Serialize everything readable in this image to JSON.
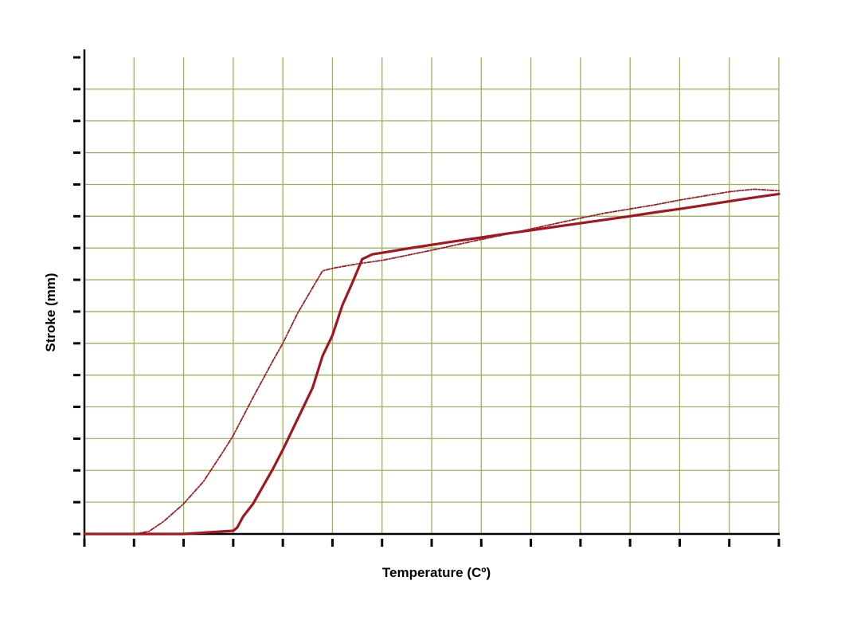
{
  "chart_data": {
    "type": "line",
    "title": "",
    "xlabel": "Temperature (Cº)",
    "ylabel": "Stroke (mm)",
    "xlim": [
      0,
      14
    ],
    "ylim": [
      0,
      15
    ],
    "x_tick_count": 15,
    "y_tick_count": 16,
    "grid": true,
    "colors": {
      "grid": "#9fb05a",
      "axis": "#000000",
      "series_solid": "#a4161f",
      "series_dashed": "#a01c22"
    },
    "series": [
      {
        "style": "solid",
        "x": [
          0,
          2,
          3,
          3.08,
          3.2,
          3.4,
          3.6,
          3.8,
          4.0,
          4.2,
          4.4,
          4.6,
          4.8,
          5.0,
          5.2,
          5.4,
          5.6,
          5.8,
          6.0,
          6.5,
          7.0,
          7.5,
          8.0,
          8.5,
          9.0,
          9.5,
          10.0,
          10.5,
          11.0,
          11.5,
          12.0,
          12.5,
          13.0,
          13.5,
          14.0
        ],
        "y": [
          0,
          0,
          0.1,
          0.2,
          0.55,
          0.95,
          1.5,
          2.05,
          2.65,
          3.3,
          3.95,
          4.6,
          5.6,
          6.25,
          7.2,
          7.9,
          8.65,
          8.8,
          8.85,
          8.98,
          9.1,
          9.22,
          9.33,
          9.45,
          9.56,
          9.67,
          9.78,
          9.89,
          10.0,
          10.12,
          10.23,
          10.35,
          10.47,
          10.59,
          10.7
        ]
      },
      {
        "style": "dashed",
        "x": [
          0,
          1,
          1.3,
          1.6,
          2.0,
          2.4,
          2.8,
          3.0,
          3.4,
          3.8,
          4.0,
          4.3,
          4.6,
          4.8,
          5.0,
          5.5,
          6.0,
          6.5,
          7.0,
          7.5,
          8.0,
          8.5,
          9.0,
          9.5,
          10.0,
          10.5,
          11.0,
          11.5,
          12.0,
          12.5,
          13.0,
          13.5,
          14.0
        ],
        "y": [
          0,
          0,
          0.08,
          0.4,
          0.95,
          1.65,
          2.6,
          3.1,
          4.3,
          5.45,
          6.0,
          6.95,
          7.75,
          8.28,
          8.36,
          8.5,
          8.61,
          8.77,
          8.93,
          9.1,
          9.27,
          9.43,
          9.6,
          9.77,
          9.94,
          10.1,
          10.23,
          10.36,
          10.51,
          10.64,
          10.77,
          10.85,
          10.8
        ]
      }
    ]
  }
}
